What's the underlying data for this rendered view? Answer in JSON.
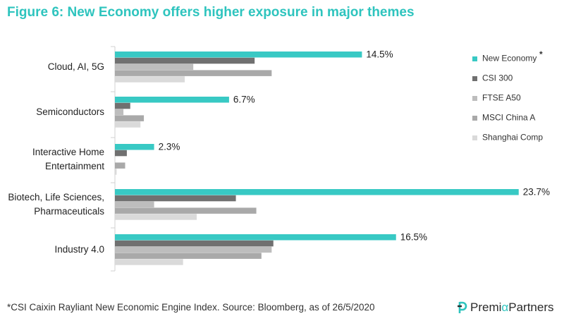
{
  "title": "Figure 6: New Economy offers higher exposure in major themes",
  "footnote": "*CSI Caixin Rayliant New Economic Engine Index. Source: Bloomberg, as of 26/5/2020",
  "logo": {
    "part1": "Premi",
    "alpha": "α",
    "part2": "Partners"
  },
  "legend_marker": "*",
  "colors": {
    "new_economy": "#38c9c4",
    "csi300": "#707070",
    "ftse_a50": "#bdbdbd",
    "msci_china_a": "#a9a9a9",
    "shanghai_comp": "#dadada",
    "title": "#2ec4be"
  },
  "chart_data": {
    "type": "bar",
    "orientation": "horizontal",
    "categories": [
      [
        "Cloud, AI, 5G"
      ],
      [
        "Semiconductors"
      ],
      [
        "Interactive Home",
        "Entertainment"
      ],
      [
        "Biotech, Life Sciences,",
        "Pharmaceuticals"
      ],
      [
        "Industry 4.0"
      ]
    ],
    "series": [
      {
        "name": "New Economy",
        "values": [
          14.5,
          6.7,
          2.3,
          23.7,
          16.5
        ],
        "labels": [
          "14.5%",
          "6.7%",
          "2.3%",
          "23.7%",
          "16.5%"
        ]
      },
      {
        "name": "CSI 300",
        "values": [
          8.2,
          0.9,
          0.7,
          7.1,
          9.3
        ]
      },
      {
        "name": "FTSE A50",
        "values": [
          4.6,
          0.5,
          0.0,
          2.3,
          9.2
        ]
      },
      {
        "name": "MSCI China A",
        "values": [
          9.2,
          1.7,
          0.6,
          8.3,
          8.6
        ]
      },
      {
        "name": "Shanghai Comp",
        "values": [
          4.1,
          1.5,
          0.1,
          4.8,
          4.0
        ]
      }
    ],
    "legend_position": "right",
    "xlim": [
      0,
      24
    ],
    "grid": false
  }
}
